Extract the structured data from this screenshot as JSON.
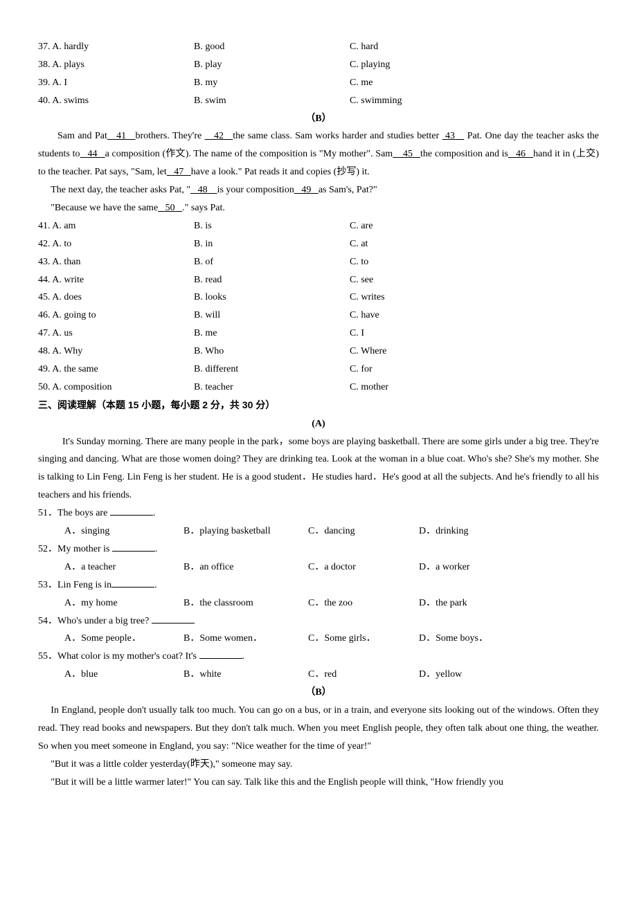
{
  "text_color": "#000000",
  "background_color": "#ffffff",
  "base_font_size_pt": 11,
  "cloze1_options": [
    {
      "n": "37",
      "a": "A. hardly",
      "b": "B. good",
      "c": "C. hard"
    },
    {
      "n": "38",
      "a": "A. plays",
      "b": "B. play",
      "c": "C. playing"
    },
    {
      "n": "39",
      "a": "A. I",
      "b": "B. my",
      "c": "C. me"
    },
    {
      "n": "40",
      "a": "A. swims",
      "b": "B. swim",
      "c": "C. swimming"
    }
  ],
  "section_B_label": "（B）",
  "cloze2_passage": {
    "p1a": "Sam and Pat",
    "b41": "   41   ",
    "p1b": "brothers. They're ",
    "b42": "   42   ",
    "p1c": "the same class. Sam works harder and studies better ",
    "b43": " 43   ",
    "p1d": " Pat. One day the teacher asks the students to",
    "b44": "   44   ",
    "p1e": "a composition (作文). The name of the composition is \"My mother\". Sam",
    "b45": "    45   ",
    "p1f": "the composition and is",
    "b46": "   46   ",
    "p1g": "hand it in (上交) to the teacher. Pat says, \"Sam, let",
    "b47": "   47   ",
    "p1h": "have a look.\" Pat reads it and copies (抄写) it.",
    "p2a": "The next day, the teacher asks Pat, \"",
    "b48": "   48    ",
    "p2b": "is your composition",
    "b49": "   49   ",
    "p2c": "as Sam's, Pat?\"",
    "p3a": "\"Because we have the same",
    "b50": "   50   ",
    "p3b": ".\" says Pat."
  },
  "cloze2_options": [
    {
      "n": "41",
      "a": "A. am",
      "b": "B. is",
      "c": "C. are"
    },
    {
      "n": "42",
      "a": "A. to",
      "b": "B. in",
      "c": "C. at"
    },
    {
      "n": "43",
      "a": "A. than",
      "b": "B. of",
      "c": "C. to"
    },
    {
      "n": "44",
      "a": "A. write",
      "b": "B. read",
      "c": "C. see"
    },
    {
      "n": "45",
      "a": "A. does",
      "b": "B. looks",
      "c": "C. writes"
    },
    {
      "n": "46",
      "a": "A. going to",
      "b": "B. will",
      "c": "C. have"
    },
    {
      "n": "47",
      "a": "A. us",
      "b": "B. me",
      "c": "C. I"
    },
    {
      "n": "48",
      "a": "A. Why",
      "b": "B. Who",
      "c": "C. Where"
    },
    {
      "n": "49",
      "a": "A. the same",
      "b": "B. different",
      "c": "C. for"
    },
    {
      "n": "50",
      "a": "A. composition",
      "b": "B. teacher",
      "c": "C. mother"
    }
  ],
  "reading_heading_cn": "三、阅读理解",
  "reading_heading_paren": "（本题 15 小题，每小题 2 分，共 30 分）",
  "reading_A_label": "(A)",
  "reading_A_passage": "It's Sunday morning. There are many people in the park，some boys are playing basketball. There are some girls under a big tree. They're singing and dancing. What are those women doing? They are drinking tea. Look at the woman in a blue coat. Who's she? She's my mother. She is talking to Lin Feng. Lin Feng is her student. He is a good student．He studies hard．He's good at all the subjects. And he's friendly to all his teachers and his friends.",
  "reading_A_questions": [
    {
      "n": "51",
      "stem_pre": "The boys are ",
      "stem_post": ".",
      "a": "A．singing",
      "b": "B．playing basketball",
      "c": "C．dancing",
      "d": "D．drinking"
    },
    {
      "n": "52",
      "stem_pre": "My mother is ",
      "stem_post": ".",
      "a": "A．a teacher",
      "b": "B．an office",
      "c": "C．a doctor",
      "d": "D．a worker"
    },
    {
      "n": "53",
      "stem_pre": "Lin Feng is in",
      "stem_post": ".",
      "a": "A．my home",
      "b": "B．the classroom",
      "c": "C．the zoo",
      "d": "D．the park"
    },
    {
      "n": "54",
      "stem_pre": "Who's under a big tree?   ",
      "stem_post": "",
      "a": "A．Some people．",
      "b": "B．Some women．",
      "c": "C．Some girls．",
      "d": "D．Some boys．"
    },
    {
      "n": "55",
      "stem_pre": "What color is my mother's coat? It's ",
      "stem_post": ".",
      "a": "A．blue",
      "b": "B．white",
      "c": "C．red",
      "d": "D．yellow"
    }
  ],
  "reading_B_label": "（B）",
  "reading_B_p1": "In England, people don't usually talk too much. You can go on a bus, or in a train, and everyone sits looking out of the windows. Often they read. They read books and newspapers. But they don't talk much.        When you meet English people, they often talk about one thing, the weather. So when you meet someone in England, you say: \"Nice weather for the time of year!\"",
  "reading_B_p2": "\"But it was a little colder yesterday(昨天),\" someone may say.",
  "reading_B_p3": "\"But it will be a little warmer later!\" You can say. Talk like this and the English people will think, \"How friendly you"
}
